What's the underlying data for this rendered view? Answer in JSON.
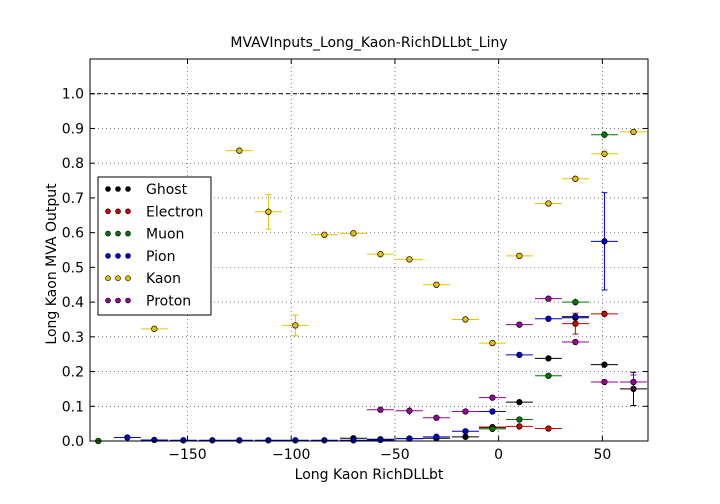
{
  "chart_data": {
    "type": "scatter",
    "title": "MVAVInputs_Long_Kaon-RichDLLbt_Liny",
    "xlabel": "Long Kaon RichDLLbt",
    "ylabel": "Long Kaon MVA Output",
    "xlim": [
      -197,
      72
    ],
    "ylim": [
      0.0,
      1.1
    ],
    "x_ticks": [
      -150,
      -100,
      -50,
      0,
      50
    ],
    "x_tick_labels": [
      "−150",
      "−100",
      "−50",
      "0",
      "50"
    ],
    "y_ticks": [
      0.0,
      0.1,
      0.2,
      0.3,
      0.4,
      0.5,
      0.6,
      0.7,
      0.8,
      0.9,
      1.0
    ],
    "y_tick_labels": [
      "0.0",
      "0.1",
      "0.2",
      "0.3",
      "0.4",
      "0.5",
      "0.6",
      "0.7",
      "0.8",
      "0.9",
      "1.0"
    ],
    "grid": true,
    "reference_line_y": 1.0,
    "legend_position": "center-left",
    "series": [
      {
        "name": "Ghost",
        "color": "#000000",
        "xerr": 6.5,
        "points": [
          {
            "x": -70,
            "y": 0.008,
            "e": 0.003
          },
          {
            "x": -57,
            "y": 0.005,
            "e": 0.003
          },
          {
            "x": -43,
            "y": 0.007,
            "e": 0.003
          },
          {
            "x": -30,
            "y": 0.008,
            "e": 0.003
          },
          {
            "x": -16,
            "y": 0.012,
            "e": 0.004
          },
          {
            "x": -3,
            "y": 0.04,
            "e": 0.005
          },
          {
            "x": 10,
            "y": 0.112,
            "e": 0.006
          },
          {
            "x": 24,
            "y": 0.238,
            "e": 0.008
          },
          {
            "x": 37,
            "y": 0.355,
            "e": 0.01
          },
          {
            "x": 51,
            "y": 0.22,
            "e": 0.009
          },
          {
            "x": 65,
            "y": 0.15,
            "e": 0.048
          }
        ]
      },
      {
        "name": "Electron",
        "color": "#cc0000",
        "xerr": 6.5,
        "points": [
          {
            "x": -3,
            "y": 0.038,
            "e": 0.005
          },
          {
            "x": 10,
            "y": 0.042,
            "e": 0.005
          },
          {
            "x": 24,
            "y": 0.036,
            "e": 0.005
          },
          {
            "x": 37,
            "y": 0.338,
            "e": 0.03
          },
          {
            "x": 51,
            "y": 0.366,
            "e": 0.01
          }
        ]
      },
      {
        "name": "Muon",
        "color": "#007700",
        "xerr": 6.5,
        "points": [
          {
            "x": -193,
            "y": 0.0,
            "e": 0.002
          },
          {
            "x": -3,
            "y": 0.035,
            "e": 0.005
          },
          {
            "x": 10,
            "y": 0.062,
            "e": 0.006
          },
          {
            "x": 24,
            "y": 0.188,
            "e": 0.008
          },
          {
            "x": 37,
            "y": 0.4,
            "e": 0.01
          },
          {
            "x": 51,
            "y": 0.882,
            "e": 0.01
          }
        ]
      },
      {
        "name": "Pion",
        "color": "#0000cc",
        "xerr": 6.5,
        "points": [
          {
            "x": -179,
            "y": 0.01,
            "e": 0.003
          },
          {
            "x": -166,
            "y": 0.003,
            "e": 0.002
          },
          {
            "x": -152,
            "y": 0.002,
            "e": 0.002
          },
          {
            "x": -138,
            "y": 0.002,
            "e": 0.002
          },
          {
            "x": -125,
            "y": 0.002,
            "e": 0.002
          },
          {
            "x": -111,
            "y": 0.002,
            "e": 0.002
          },
          {
            "x": -98,
            "y": 0.002,
            "e": 0.002
          },
          {
            "x": -84,
            "y": 0.002,
            "e": 0.002
          },
          {
            "x": -70,
            "y": 0.002,
            "e": 0.002
          },
          {
            "x": -57,
            "y": 0.003,
            "e": 0.002
          },
          {
            "x": -43,
            "y": 0.007,
            "e": 0.003
          },
          {
            "x": -30,
            "y": 0.012,
            "e": 0.004
          },
          {
            "x": -16,
            "y": 0.028,
            "e": 0.005
          },
          {
            "x": -3,
            "y": 0.085,
            "e": 0.006
          },
          {
            "x": 10,
            "y": 0.248,
            "e": 0.008
          },
          {
            "x": 24,
            "y": 0.352,
            "e": 0.009
          },
          {
            "x": 37,
            "y": 0.358,
            "e": 0.01
          },
          {
            "x": 51,
            "y": 0.575,
            "e": 0.14
          }
        ]
      },
      {
        "name": "Kaon",
        "color": "#e6c200",
        "xerr": 6.5,
        "points": [
          {
            "x": -166,
            "y": 0.323,
            "e": 0.006
          },
          {
            "x": -125,
            "y": 0.836,
            "e": 0.005
          },
          {
            "x": -111,
            "y": 0.66,
            "e": 0.05
          },
          {
            "x": -98,
            "y": 0.333,
            "e": 0.03
          },
          {
            "x": -84,
            "y": 0.594,
            "e": 0.006
          },
          {
            "x": -70,
            "y": 0.598,
            "e": 0.006
          },
          {
            "x": -57,
            "y": 0.538,
            "e": 0.005
          },
          {
            "x": -43,
            "y": 0.523,
            "e": 0.005
          },
          {
            "x": -30,
            "y": 0.45,
            "e": 0.005
          },
          {
            "x": -16,
            "y": 0.35,
            "e": 0.005
          },
          {
            "x": -3,
            "y": 0.282,
            "e": 0.005
          },
          {
            "x": 10,
            "y": 0.533,
            "e": 0.005
          },
          {
            "x": 24,
            "y": 0.684,
            "e": 0.005
          },
          {
            "x": 37,
            "y": 0.755,
            "e": 0.005
          },
          {
            "x": 51,
            "y": 0.827,
            "e": 0.005
          },
          {
            "x": 65,
            "y": 0.89,
            "e": 0.005
          }
        ]
      },
      {
        "name": "Proton",
        "color": "#990099",
        "xerr": 6.5,
        "points": [
          {
            "x": -57,
            "y": 0.09,
            "e": 0.006
          },
          {
            "x": -43,
            "y": 0.087,
            "e": 0.012
          },
          {
            "x": -30,
            "y": 0.067,
            "e": 0.006
          },
          {
            "x": -16,
            "y": 0.085,
            "e": 0.005
          },
          {
            "x": -3,
            "y": 0.125,
            "e": 0.006
          },
          {
            "x": 10,
            "y": 0.335,
            "e": 0.006
          },
          {
            "x": 24,
            "y": 0.41,
            "e": 0.006
          },
          {
            "x": 37,
            "y": 0.285,
            "e": 0.006
          },
          {
            "x": 51,
            "y": 0.17,
            "e": 0.008
          },
          {
            "x": 65,
            "y": 0.17,
            "e": 0.02
          }
        ]
      }
    ]
  }
}
